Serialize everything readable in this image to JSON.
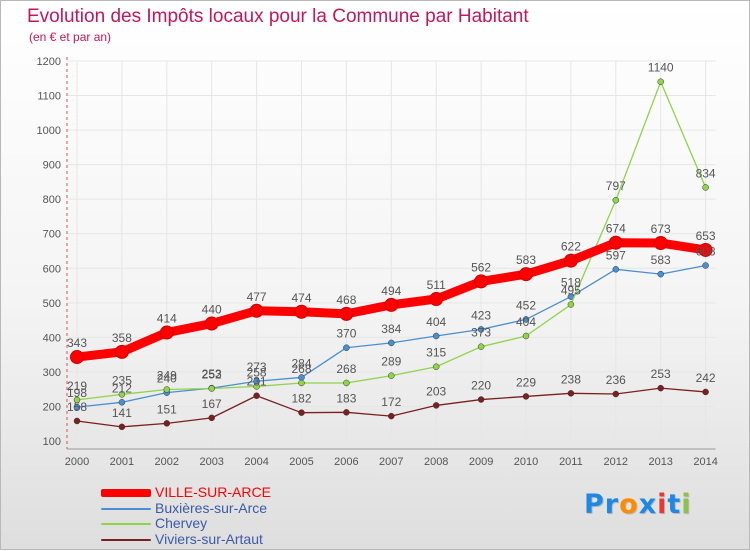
{
  "title": "Evolution des Impôts locaux pour la Commune par Habitant",
  "subtitle": "(en € et par an)",
  "logo": {
    "text": "Proxiti",
    "letters": [
      "P",
      "r",
      "o",
      "x",
      "i",
      "t",
      "i"
    ],
    "colors": [
      "#1e88e5",
      "#1e88e5",
      "#fb8c00",
      "#1e88e5",
      "#e53935",
      "#1e88e5",
      "#8bc34a"
    ]
  },
  "chart_data": {
    "type": "line",
    "title": "Evolution des Impôts locaux pour la Commune par Habitant",
    "subtitle": "(en € et par an)",
    "x": [
      "2000",
      "2001",
      "2002",
      "2003",
      "2004",
      "2005",
      "2006",
      "2007",
      "2008",
      "2009",
      "2010",
      "2011",
      "2012",
      "2013",
      "2014"
    ],
    "ylim": [
      100,
      1200
    ],
    "yticks": [
      "100",
      "200",
      "300",
      "400",
      "500",
      "600",
      "700",
      "800",
      "900",
      "1000",
      "1100",
      "1200"
    ],
    "grid": true,
    "legend": "bottom-left",
    "series": [
      {
        "name": "VILLE-SUR-ARCE",
        "color": "#ff0000",
        "values": [
          343,
          358,
          414,
          440,
          477,
          474,
          468,
          494,
          511,
          562,
          583,
          622,
          674,
          673,
          653
        ],
        "labels": [
          "343",
          "358",
          "414",
          "440",
          "477",
          "474",
          "468",
          "494",
          "511",
          "562",
          "583",
          "622",
          "674",
          "673",
          "653"
        ]
      },
      {
        "name": "Buxières-sur-Arce",
        "color": "#4a8fd0",
        "values": [
          198,
          212,
          240,
          253,
          273,
          284,
          370,
          384,
          404,
          423,
          452,
          518,
          597,
          583,
          608
        ],
        "labels": [
          "198",
          "212",
          "240",
          "253",
          "273",
          "284",
          "370",
          "384",
          "404",
          "423",
          "452",
          "518",
          "597",
          "583",
          "608"
        ]
      },
      {
        "name": "Chervey",
        "color": "#8fd44a",
        "values": [
          219,
          235,
          249,
          252,
          258,
          268,
          268,
          289,
          315,
          373,
          404,
          495,
          797,
          1140,
          834
        ],
        "labels": [
          "219",
          "235",
          "249",
          "252",
          "258",
          "268",
          "268",
          "289",
          "315",
          "373",
          "404",
          "495",
          "797",
          "1140",
          "834"
        ]
      },
      {
        "name": "Viviers-sur-Artaut",
        "color": "#7b1f1f",
        "values": [
          158,
          141,
          151,
          167,
          231,
          182,
          183,
          172,
          203,
          220,
          229,
          238,
          236,
          253,
          242
        ],
        "labels": [
          "158",
          "141",
          "151",
          "167",
          "231",
          "182",
          "183",
          "172",
          "203",
          "220",
          "229",
          "238",
          "236",
          "253",
          "242"
        ]
      }
    ]
  }
}
